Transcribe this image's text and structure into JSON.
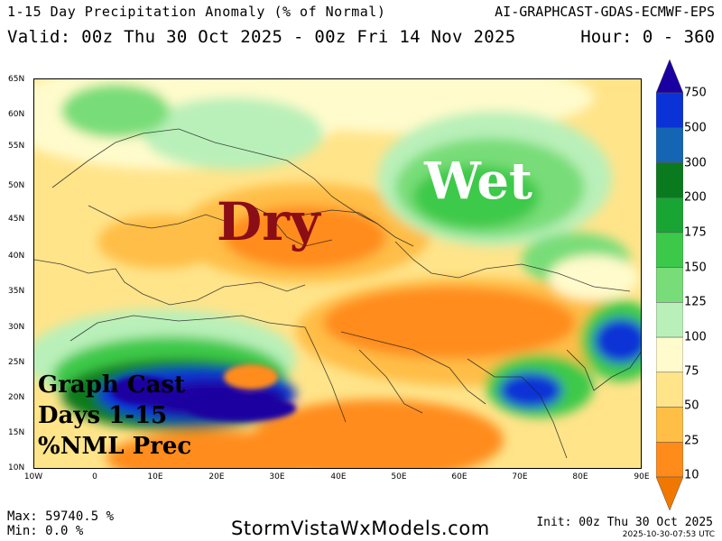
{
  "header": {
    "title": "1-15 Day Precipitation Anomaly (% of Normal)",
    "model": "AI-GRAPHCAST-GDAS-ECMWF-EPS",
    "valid": "Valid: 00z Thu 30 Oct 2025 - 00z Fri 14 Nov 2025",
    "hours": "Hour: 0 - 360"
  },
  "map": {
    "lat_labels": [
      "65N",
      "60N",
      "55N",
      "50N",
      "45N",
      "40N",
      "35N",
      "30N",
      "25N",
      "20N",
      "15N",
      "10N"
    ],
    "lon_labels": [
      "10W",
      "0",
      "10E",
      "20E",
      "30E",
      "40E",
      "50E",
      "60E",
      "70E",
      "80E",
      "90E"
    ],
    "annotation_dry": "Dry",
    "annotation_wet": "Wet",
    "caption": [
      "Graph Cast",
      "Days 1-15",
      "%NML Prec"
    ],
    "colors": {
      "dry_text": "#8b0d16",
      "wet_text": "#ffffff"
    }
  },
  "colorbar": {
    "levels": [
      "750",
      "500",
      "300",
      "200",
      "175",
      "150",
      "125",
      "100",
      "75",
      "50",
      "25",
      "10"
    ],
    "colors": [
      "#1a00a0",
      "#0a32d6",
      "#1466b4",
      "#0a7a1e",
      "#18a534",
      "#3cc94a",
      "#78dd78",
      "#b9f0b9",
      "#fffbcc",
      "#ffe48a",
      "#ffbe46",
      "#ff8c1a",
      "#f07800"
    ]
  },
  "footer": {
    "max": "Max: 59740.5 %",
    "min": "Min: 0.0 %",
    "site": "StormVistaWxModels.com",
    "init": "Init: 00z Thu 30 Oct 2025",
    "timestamp": "2025-10-30-07:53 UTC"
  }
}
